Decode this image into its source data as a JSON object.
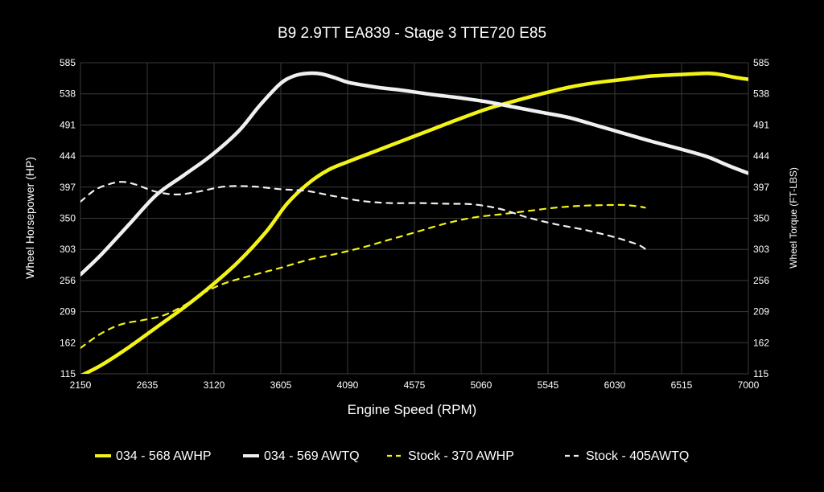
{
  "chart_data": {
    "type": "line",
    "title": "B9 2.9TT EA839 - Stage 3 TTE720 E85",
    "xlabel": "Engine Speed (RPM)",
    "ylabel_left": "Wheel Horsepower (HP)",
    "ylabel_right": "Wheel Torque (FT-LBS)",
    "xlim": [
      2150,
      7000
    ],
    "ylim": [
      115,
      585
    ],
    "x_ticks": [
      "2150",
      "2635",
      "3120",
      "3605",
      "4090",
      "4575",
      "5060",
      "5545",
      "6030",
      "6515",
      "7000"
    ],
    "y_ticks": [
      "115",
      "162",
      "209",
      "256",
      "303",
      "350",
      "397",
      "444",
      "491",
      "538",
      "585"
    ],
    "grid": true,
    "legend_position": "bottom",
    "colors": {
      "yellow": "#f3f318",
      "white": "#f0f0f0",
      "grid": "#3a3a3a",
      "background": "#000000"
    },
    "series": [
      {
        "name": "034 - 568 AWHP",
        "color": "#f3f318",
        "dash": "solid",
        "x": [
          2150,
          2300,
          2500,
          2700,
          2900,
          3100,
          3300,
          3500,
          3650,
          3800,
          3950,
          4100,
          4300,
          4500,
          4700,
          4900,
          5100,
          5300,
          5500,
          5700,
          5900,
          6100,
          6300,
          6500,
          6700,
          6800,
          6900,
          7000
        ],
        "values": [
          112,
          128,
          155,
          185,
          215,
          248,
          285,
          330,
          372,
          402,
          423,
          436,
          452,
          468,
          484,
          500,
          515,
          527,
          538,
          548,
          555,
          560,
          565,
          567,
          569,
          567,
          563,
          560
        ]
      },
      {
        "name": "034 - 569 AWTQ",
        "color": "#f0f0f0",
        "dash": "solid",
        "x": [
          2150,
          2300,
          2500,
          2700,
          2900,
          3100,
          3300,
          3450,
          3600,
          3700,
          3800,
          3900,
          4000,
          4100,
          4300,
          4500,
          4700,
          4900,
          5100,
          5300,
          5500,
          5700,
          5900,
          6100,
          6300,
          6500,
          6700,
          6850,
          7000
        ],
        "values": [
          265,
          295,
          340,
          385,
          415,
          445,
          482,
          520,
          553,
          565,
          569,
          568,
          562,
          555,
          548,
          543,
          537,
          532,
          526,
          518,
          510,
          502,
          490,
          478,
          466,
          455,
          443,
          430,
          418
        ]
      },
      {
        "name": "Stock - 370 AWHP",
        "color": "#f3f318",
        "dash": "dashed",
        "x": [
          2150,
          2300,
          2450,
          2600,
          2750,
          2900,
          3050,
          3200,
          3400,
          3600,
          3800,
          4000,
          4200,
          4400,
          4600,
          4800,
          5000,
          5200,
          5400,
          5600,
          5800,
          6000,
          6100,
          6200,
          6250
        ],
        "values": [
          154,
          176,
          190,
          196,
          203,
          218,
          238,
          252,
          264,
          275,
          287,
          296,
          306,
          318,
          330,
          342,
          351,
          356,
          361,
          366,
          369,
          370,
          370,
          368,
          366
        ]
      },
      {
        "name": "Stock - 405AWTQ",
        "color": "#f0f0f0",
        "dash": "dashed",
        "x": [
          2150,
          2250,
          2350,
          2450,
          2550,
          2700,
          2850,
          3000,
          3200,
          3400,
          3600,
          3800,
          4000,
          4200,
          4400,
          4600,
          4800,
          5000,
          5200,
          5400,
          5600,
          5800,
          6000,
          6100,
          6200,
          6250
        ],
        "values": [
          375,
          392,
          401,
          405,
          401,
          390,
          386,
          390,
          398,
          398,
          394,
          391,
          383,
          376,
          373,
          373,
          372,
          371,
          364,
          351,
          341,
          333,
          323,
          317,
          310,
          304
        ]
      }
    ]
  }
}
